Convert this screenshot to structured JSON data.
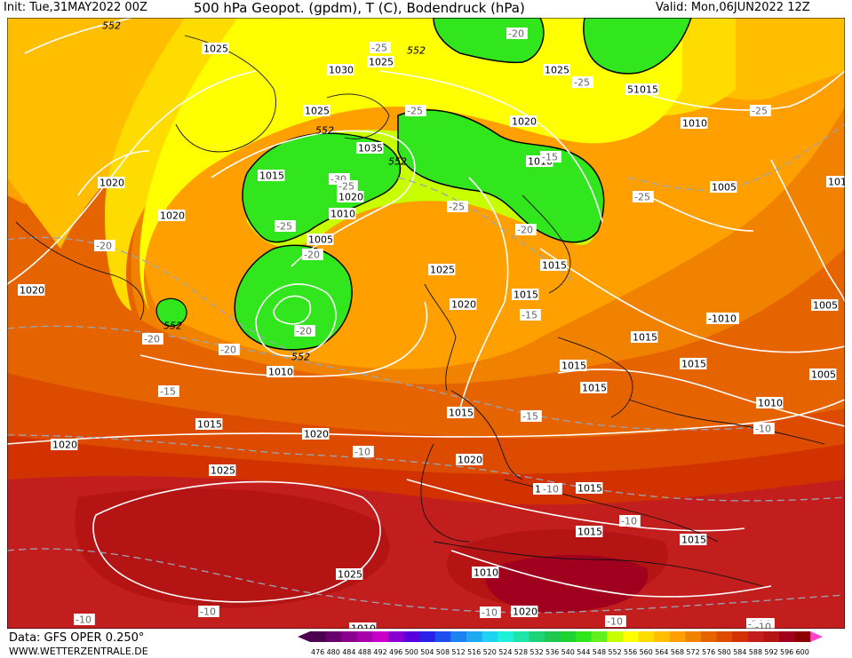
{
  "header": {
    "init": "Init: Tue,31MAY2022 00Z",
    "product": "500 hPa Geopot. (gpdm), T (C), Bodendruck (hPa)",
    "valid": "Valid: Mon,06JUN2022 12Z"
  },
  "footer": {
    "data_source": "Data: GFS OPER 0.250°",
    "website": "WWW.WETTERZENTRALE.DE"
  },
  "colorbar": {
    "labels": [
      "476",
      "480",
      "484",
      "488",
      "492",
      "496",
      "500",
      "504",
      "508",
      "512",
      "516",
      "520",
      "524",
      "528",
      "532",
      "536",
      "540",
      "544",
      "548",
      "552",
      "556",
      "560",
      "564",
      "568",
      "572",
      "576",
      "580",
      "584",
      "588",
      "592",
      "596",
      "600"
    ],
    "colors": [
      "#4b0050",
      "#6a006e",
      "#8a008c",
      "#a800aa",
      "#c800c8",
      "#8a00d2",
      "#5a00dc",
      "#2a20e6",
      "#1e50f0",
      "#1e82f0",
      "#1eaaf0",
      "#1ed2f0",
      "#1ef0dc",
      "#1ee6aa",
      "#1ed278",
      "#1ec850",
      "#1ed232",
      "#32e61e",
      "#64f01e",
      "#c8ff00",
      "#ffff00",
      "#ffdc00",
      "#ffbe00",
      "#ffa000",
      "#f08200",
      "#e66400",
      "#dc4b00",
      "#d23200",
      "#c31e1e",
      "#b41414",
      "#a0001e",
      "#8c0000"
    ]
  },
  "isobar_labels": [
    {
      "text": "1025",
      "ref": "greenland-n"
    },
    {
      "text": "1030",
      "ref": "norwegian-sea"
    },
    {
      "text": "1025",
      "ref": "svalbard"
    },
    {
      "text": "1025",
      "ref": "barents"
    },
    {
      "text": "51015",
      "ref": "kara"
    },
    {
      "text": "1020",
      "ref": "scand-n"
    },
    {
      "text": "1010",
      "ref": "urals-n"
    },
    {
      "text": "1025",
      "ref": "iceland"
    },
    {
      "text": "1035",
      "ref": "iceland-e"
    },
    {
      "text": "1015",
      "ref": "denmark-strait"
    },
    {
      "text": "1020",
      "ref": "faroe"
    },
    {
      "text": "1010",
      "ref": "faroe-s"
    },
    {
      "text": "1020",
      "ref": "labrador"
    },
    {
      "text": "1020",
      "ref": "greenland-s"
    },
    {
      "text": "1005",
      "ref": "atlantic-low"
    },
    {
      "text": "1025",
      "ref": "north-sea"
    },
    {
      "text": "1015",
      "ref": "baltic"
    },
    {
      "text": "1015",
      "ref": "denmark"
    },
    {
      "text": "1020",
      "ref": "britain"
    },
    {
      "text": "1010",
      "ref": "finland"
    },
    {
      "text": "1005",
      "ref": "russia"
    },
    {
      "text": "1010",
      "ref": "caspian-n"
    },
    {
      "text": "1020",
      "ref": "newfoundland"
    },
    {
      "text": "1010",
      "ref": "atlantic-low-s"
    },
    {
      "text": "-1010",
      "ref": "ukraine"
    },
    {
      "text": "1015",
      "ref": "poland"
    },
    {
      "text": "1015",
      "ref": "germany"
    },
    {
      "text": "1015",
      "ref": "alps"
    },
    {
      "text": "1015",
      "ref": "balkans"
    },
    {
      "text": "1005",
      "ref": "volga"
    },
    {
      "text": "1005",
      "ref": "caspian"
    },
    {
      "text": "1010",
      "ref": "black-sea"
    },
    {
      "text": "1015",
      "ref": "biscay"
    },
    {
      "text": "1015",
      "ref": "mid-atlantic"
    },
    {
      "text": "1020",
      "ref": "azores-n"
    },
    {
      "text": "1020",
      "ref": "atlantic-w"
    },
    {
      "text": "1020",
      "ref": "iberia-w"
    },
    {
      "text": "1025",
      "ref": "azores-high"
    },
    {
      "text": "1015",
      "ref": "med-w"
    },
    {
      "text": "1015",
      "ref": "tunisia"
    },
    {
      "text": "1015",
      "ref": "libya"
    },
    {
      "text": "1025",
      "ref": "canary"
    },
    {
      "text": "1015",
      "ref": "algeria"
    },
    {
      "text": "1010",
      "ref": "sahara"
    },
    {
      "text": "1020",
      "ref": "cape-verde"
    },
    {
      "text": "1010",
      "ref": "turkey-e"
    }
  ],
  "temperature_labels": [
    {
      "text": "-20",
      "ref": "jan-mayen"
    },
    {
      "text": "-25",
      "ref": "svalbard-s"
    },
    {
      "text": "-25",
      "ref": "barents-s"
    },
    {
      "text": "-25",
      "ref": "kola"
    },
    {
      "text": "-15",
      "ref": "kara-e"
    },
    {
      "text": "-25",
      "ref": "norway-sea"
    },
    {
      "text": "-30",
      "ref": "iceland-low"
    },
    {
      "text": "-25",
      "ref": "iceland-low-2"
    },
    {
      "text": "-25",
      "ref": "scotland-n"
    },
    {
      "text": "-20",
      "ref": "denmark-strait-s"
    },
    {
      "text": "-20",
      "ref": "atlantic-low-c"
    },
    {
      "text": "-25",
      "ref": "atlantic-low-core"
    },
    {
      "text": "-20",
      "ref": "north-sea-n"
    },
    {
      "text": "-25",
      "ref": "scand-s"
    },
    {
      "text": "-20",
      "ref": "russia-w"
    },
    {
      "text": "-20",
      "ref": "labrador-e"
    },
    {
      "text": "-20",
      "ref": "newfoundland-e"
    },
    {
      "text": "-15",
      "ref": "atlantic-c"
    },
    {
      "text": "-15",
      "ref": "france-n"
    },
    {
      "text": "-15",
      "ref": "germany-s"
    },
    {
      "text": "-10",
      "ref": "azores-nw"
    },
    {
      "text": "-10",
      "ref": "atlantic-s"
    },
    {
      "text": "-10",
      "ref": "spain"
    },
    {
      "text": "-10",
      "ref": "italy"
    },
    {
      "text": "-10",
      "ref": "sardinia"
    },
    {
      "text": "-10",
      "ref": "turkey"
    },
    {
      "text": "-10",
      "ref": "cape-verde-w"
    },
    {
      "text": "-10",
      "ref": "sahara-w"
    },
    {
      "text": "-10",
      "ref": "sahara-c"
    },
    {
      "text": "-10",
      "ref": "sahara-e"
    },
    {
      "text": "-10",
      "ref": "egypt"
    }
  ],
  "geopotential_labels": [
    "552",
    "552",
    "552",
    "552",
    "552",
    "552"
  ]
}
